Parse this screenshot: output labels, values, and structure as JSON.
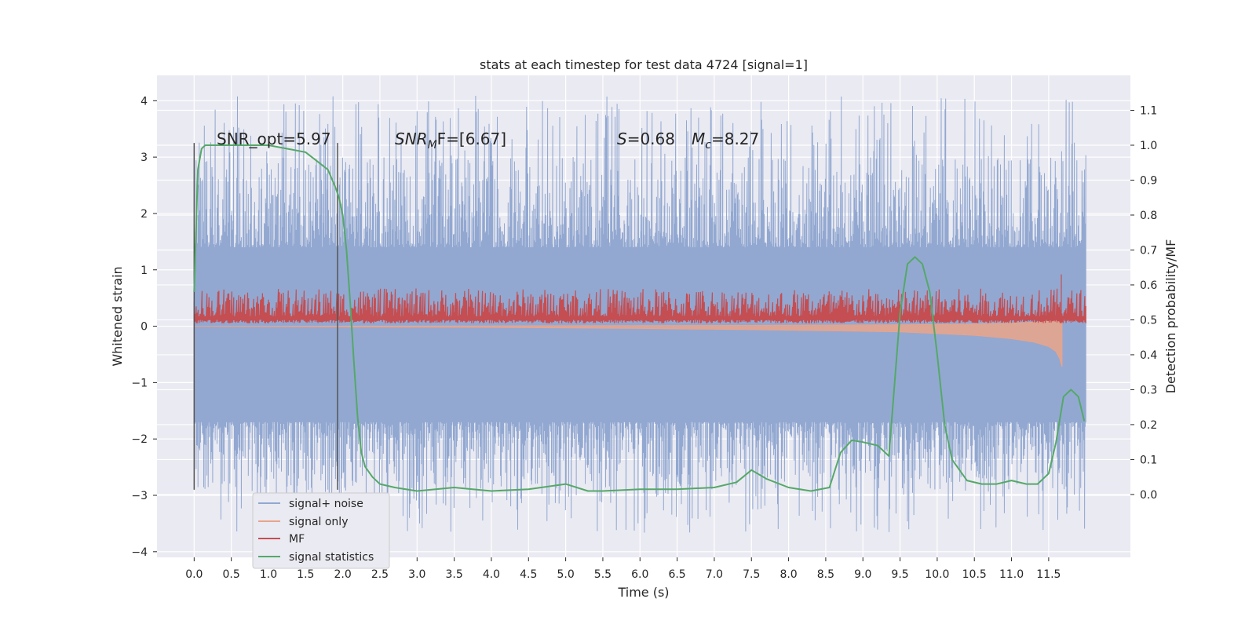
{
  "chart_data": {
    "type": "line",
    "title": "stats at each timestep for test data 4724 [signal=1]",
    "xlabel": "Time (s)",
    "ylabel": "Whitened strain",
    "y2label": "Detection probability/MF",
    "xlim": [
      -0.5,
      12.6
    ],
    "ylim": [
      -4.1,
      4.45
    ],
    "y2lim": [
      -0.18,
      1.2
    ],
    "x_ticks": [
      0.0,
      0.5,
      1.0,
      1.5,
      2.0,
      2.5,
      3.0,
      3.5,
      4.0,
      4.5,
      5.0,
      5.5,
      6.0,
      6.5,
      7.0,
      7.5,
      8.0,
      8.5,
      9.0,
      9.5,
      10.0,
      10.5,
      11.0,
      11.5
    ],
    "x_tick_labels": [
      "0.0",
      "0.5",
      "1.0",
      "1.5",
      "2.0",
      "2.5",
      "3.0",
      "3.5",
      "4.0",
      "4.5",
      "5.0",
      "5.5",
      "6.0",
      "6.5",
      "7.0",
      "7.5",
      "8.0",
      "8.5",
      "9.0",
      "9.5",
      "10.0",
      "10.5",
      "11.0",
      "11.5"
    ],
    "y_ticks": [
      -4,
      -3,
      -2,
      -1,
      0,
      1,
      2,
      3,
      4
    ],
    "y_tick_labels": [
      "−4",
      "−3",
      "−2",
      "−1",
      "0",
      "1",
      "2",
      "3",
      "4"
    ],
    "y2_ticks": [
      0.0,
      0.1,
      0.2,
      0.3,
      0.4,
      0.5,
      0.6,
      0.7,
      0.8,
      0.9,
      1.0,
      1.1
    ],
    "y2_tick_labels": [
      "0.0",
      "0.1",
      "0.2",
      "0.3",
      "0.4",
      "0.5",
      "0.6",
      "0.7",
      "0.8",
      "0.9",
      "1.0",
      "1.1"
    ],
    "grid": true,
    "legend_position": "lower-left",
    "vlines": [
      {
        "x": 0.0,
        "ymin": -2.9,
        "ymax": 3.25
      },
      {
        "x": 1.93,
        "ymin": -2.9,
        "ymax": 3.25
      }
    ],
    "annotations": {
      "snr_opt": "SNR_opt=5.97",
      "snr_mf_label": "SNR",
      "snr_mf_sub": "M",
      "snr_mf_rest": "F=[6.67]",
      "s_label": "S",
      "s_value": "=0.68",
      "mc_label": "M",
      "mc_sub": "c",
      "mc_value": "=8.27"
    },
    "series": [
      {
        "name": "signal+ noise",
        "color": "#92a8d1",
        "axis": "left",
        "style": "noise",
        "x_range": [
          0.0,
          12.0
        ],
        "envelope": {
          "core_low": -1.7,
          "core_high": 1.4,
          "spike_low": -3.7,
          "spike_high": 4.1
        }
      },
      {
        "name": "signal only",
        "color": "#e9a48a",
        "axis": "left",
        "style": "chirp",
        "x": [
          0.0,
          4.0,
          6.0,
          7.5,
          8.5,
          9.5,
          10.0,
          10.5,
          11.0,
          11.3,
          11.5,
          11.6,
          11.65,
          11.68
        ],
        "y": [
          0.0,
          -0.02,
          -0.04,
          -0.06,
          -0.08,
          -0.1,
          -0.13,
          -0.16,
          -0.22,
          -0.28,
          -0.36,
          -0.45,
          -0.58,
          -0.72
        ]
      },
      {
        "name": "MF",
        "color": "#c44e52",
        "axis": "right",
        "style": "mf",
        "x_range": [
          0.0,
          12.0
        ],
        "band": [
          0.49,
          0.57
        ],
        "peak": {
          "x": 11.67,
          "y": 0.63
        }
      },
      {
        "name": "signal statistics",
        "color": "#55a868",
        "axis": "right",
        "style": "line",
        "x": [
          0.0,
          0.05,
          0.1,
          0.15,
          0.25,
          0.5,
          1.0,
          1.5,
          1.8,
          1.9,
          1.95,
          2.0,
          2.05,
          2.1,
          2.15,
          2.2,
          2.25,
          2.3,
          2.4,
          2.5,
          2.7,
          3.0,
          3.5,
          4.0,
          4.5,
          5.0,
          5.3,
          5.5,
          6.0,
          6.5,
          7.0,
          7.3,
          7.5,
          7.7,
          8.0,
          8.3,
          8.55,
          8.7,
          8.85,
          9.0,
          9.2,
          9.35,
          9.5,
          9.6,
          9.7,
          9.75,
          9.8,
          9.9,
          10.0,
          10.1,
          10.2,
          10.4,
          10.6,
          10.8,
          11.0,
          11.2,
          11.35,
          11.5,
          11.6,
          11.7,
          11.8,
          11.9,
          11.98
        ],
        "y": [
          0.58,
          0.93,
          0.99,
          1.0,
          1.0,
          1.0,
          1.0,
          0.98,
          0.93,
          0.88,
          0.85,
          0.8,
          0.7,
          0.55,
          0.38,
          0.22,
          0.12,
          0.08,
          0.05,
          0.03,
          0.02,
          0.01,
          0.02,
          0.01,
          0.015,
          0.03,
          0.01,
          0.01,
          0.015,
          0.015,
          0.02,
          0.035,
          0.07,
          0.045,
          0.02,
          0.01,
          0.02,
          0.12,
          0.155,
          0.15,
          0.14,
          0.11,
          0.52,
          0.66,
          0.68,
          0.67,
          0.66,
          0.58,
          0.4,
          0.2,
          0.1,
          0.04,
          0.03,
          0.03,
          0.04,
          0.03,
          0.03,
          0.06,
          0.15,
          0.28,
          0.3,
          0.28,
          0.21
        ]
      }
    ]
  }
}
